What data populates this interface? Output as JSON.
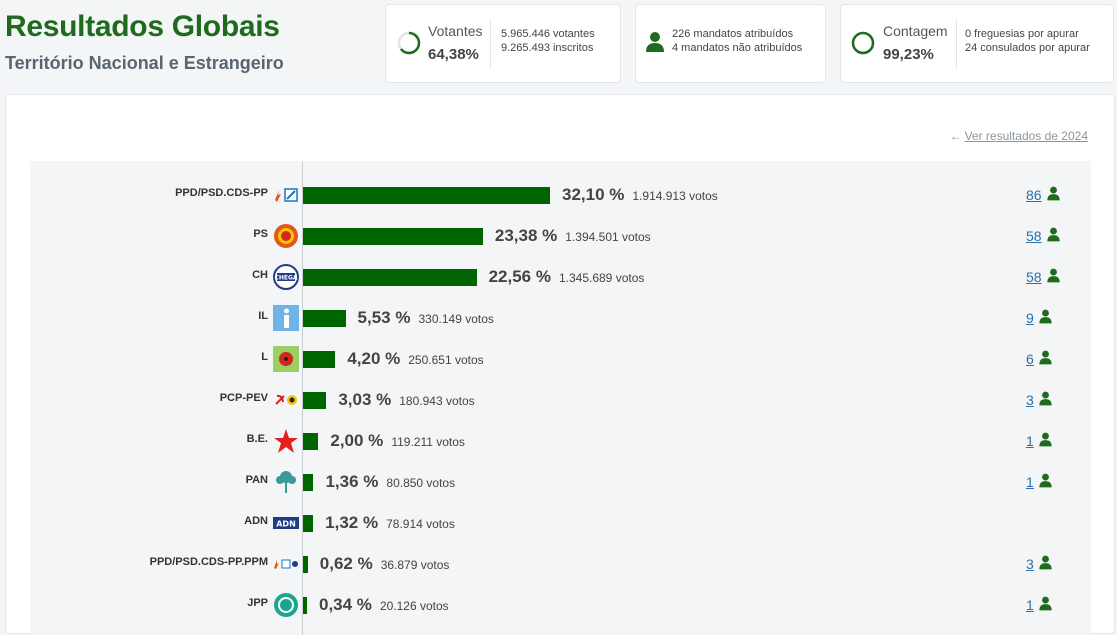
{
  "header": {
    "title": "Resultados Globais",
    "subtitle": "Território Nacional e Estrangeiro"
  },
  "cards": {
    "votantes": {
      "label": "Votantes",
      "value": "64,38%",
      "line1": "5.965.446 votantes",
      "line2": "9.265.493 inscritos",
      "progress": 0.6438
    },
    "mandatos": {
      "line1": "226 mandatos atribuídos",
      "line2": "4 mandatos não atribuídos"
    },
    "contagem": {
      "label": "Contagem",
      "value": "99,23%",
      "line1": "0 freguesias por apurar",
      "line2": "24 consulados por apurar",
      "progress": 0.9923
    }
  },
  "link_2024": "Ver resultados de 2024",
  "colors": {
    "bar": "#006400",
    "title": "#1e6b1e",
    "link": "#2a6fa8"
  },
  "chart_data": {
    "type": "bar",
    "categories": [
      "PPD/PSD.CDS-PP",
      "PS",
      "CH",
      "IL",
      "L",
      "PCP-PEV",
      "B.E.",
      "PAN",
      "ADN",
      "PPD/PSD.CDS-PP.PPM",
      "JPP"
    ],
    "values": [
      32.1,
      23.38,
      22.56,
      5.53,
      4.2,
      3.03,
      2.0,
      1.36,
      1.32,
      0.62,
      0.34
    ],
    "xlim": [
      0,
      40
    ]
  },
  "parties": [
    {
      "name": "PPD/PSD.CDS-PP",
      "pct": "32,10 %",
      "pct_value": 32.1,
      "votes": "1.914.913 votos",
      "seats": "86",
      "logo": "ad-logo"
    },
    {
      "name": "PS",
      "pct": "23,38 %",
      "pct_value": 23.38,
      "votes": "1.394.501 votos",
      "seats": "58",
      "logo": "ps-logo"
    },
    {
      "name": "CH",
      "pct": "22,56 %",
      "pct_value": 22.56,
      "votes": "1.345.689 votos",
      "seats": "58",
      "logo": "chega-logo"
    },
    {
      "name": "IL",
      "pct": "5,53 %",
      "pct_value": 5.53,
      "votes": "330.149 votos",
      "seats": "9",
      "logo": "il-logo"
    },
    {
      "name": "L",
      "pct": "4,20 %",
      "pct_value": 4.2,
      "votes": "250.651 votos",
      "seats": "6",
      "logo": "livre-logo"
    },
    {
      "name": "PCP-PEV",
      "pct": "3,03 %",
      "pct_value": 3.03,
      "votes": "180.943 votos",
      "seats": "3",
      "logo": "cdu-logo"
    },
    {
      "name": "B.E.",
      "pct": "2,00 %",
      "pct_value": 2.0,
      "votes": "119.211 votos",
      "seats": "1",
      "logo": "be-logo"
    },
    {
      "name": "PAN",
      "pct": "1,36 %",
      "pct_value": 1.36,
      "votes": "80.850 votos",
      "seats": "1",
      "logo": "pan-logo"
    },
    {
      "name": "ADN",
      "pct": "1,32 %",
      "pct_value": 1.32,
      "votes": "78.914 votos",
      "seats": "",
      "logo": "adn-logo"
    },
    {
      "name": "PPD/PSD.CDS-PP.PPM",
      "pct": "0,62 %",
      "pct_value": 0.62,
      "votes": "36.879 votos",
      "seats": "3",
      "logo": "ad-ppm-logo"
    },
    {
      "name": "JPP",
      "pct": "0,34 %",
      "pct_value": 0.34,
      "votes": "20.126 votos",
      "seats": "1",
      "logo": "jpp-logo"
    }
  ]
}
